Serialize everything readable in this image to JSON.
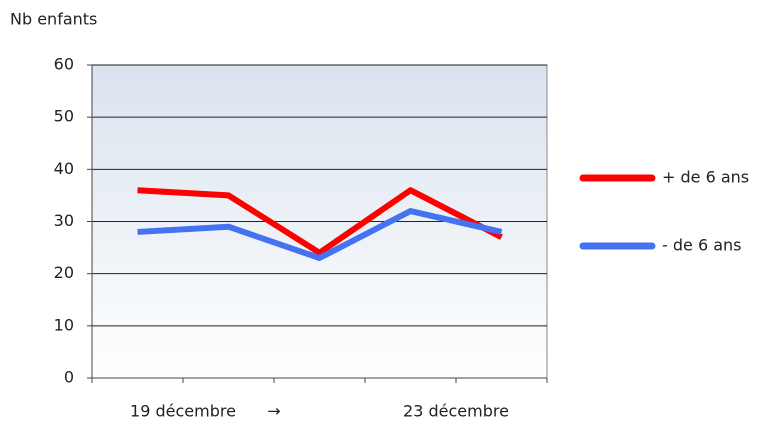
{
  "chart_data": {
    "type": "line",
    "y_label": "Nb enfants",
    "categories": [
      null,
      null,
      null,
      null,
      null
    ],
    "x_labels": [
      "19 décembre",
      "→",
      "23 décembre"
    ],
    "series": [
      {
        "name": "+ de 6 ans",
        "color": "#ff0000",
        "values": [
          36,
          35,
          24,
          36,
          27
        ]
      },
      {
        "name": "- de 6 ans",
        "color": "#4472f0",
        "values": [
          28,
          29,
          23,
          32,
          28
        ]
      }
    ],
    "ylim": [
      0,
      60
    ],
    "yticks": [
      0,
      10,
      20,
      30,
      40,
      50,
      60
    ],
    "grid": true,
    "legend": "right"
  }
}
